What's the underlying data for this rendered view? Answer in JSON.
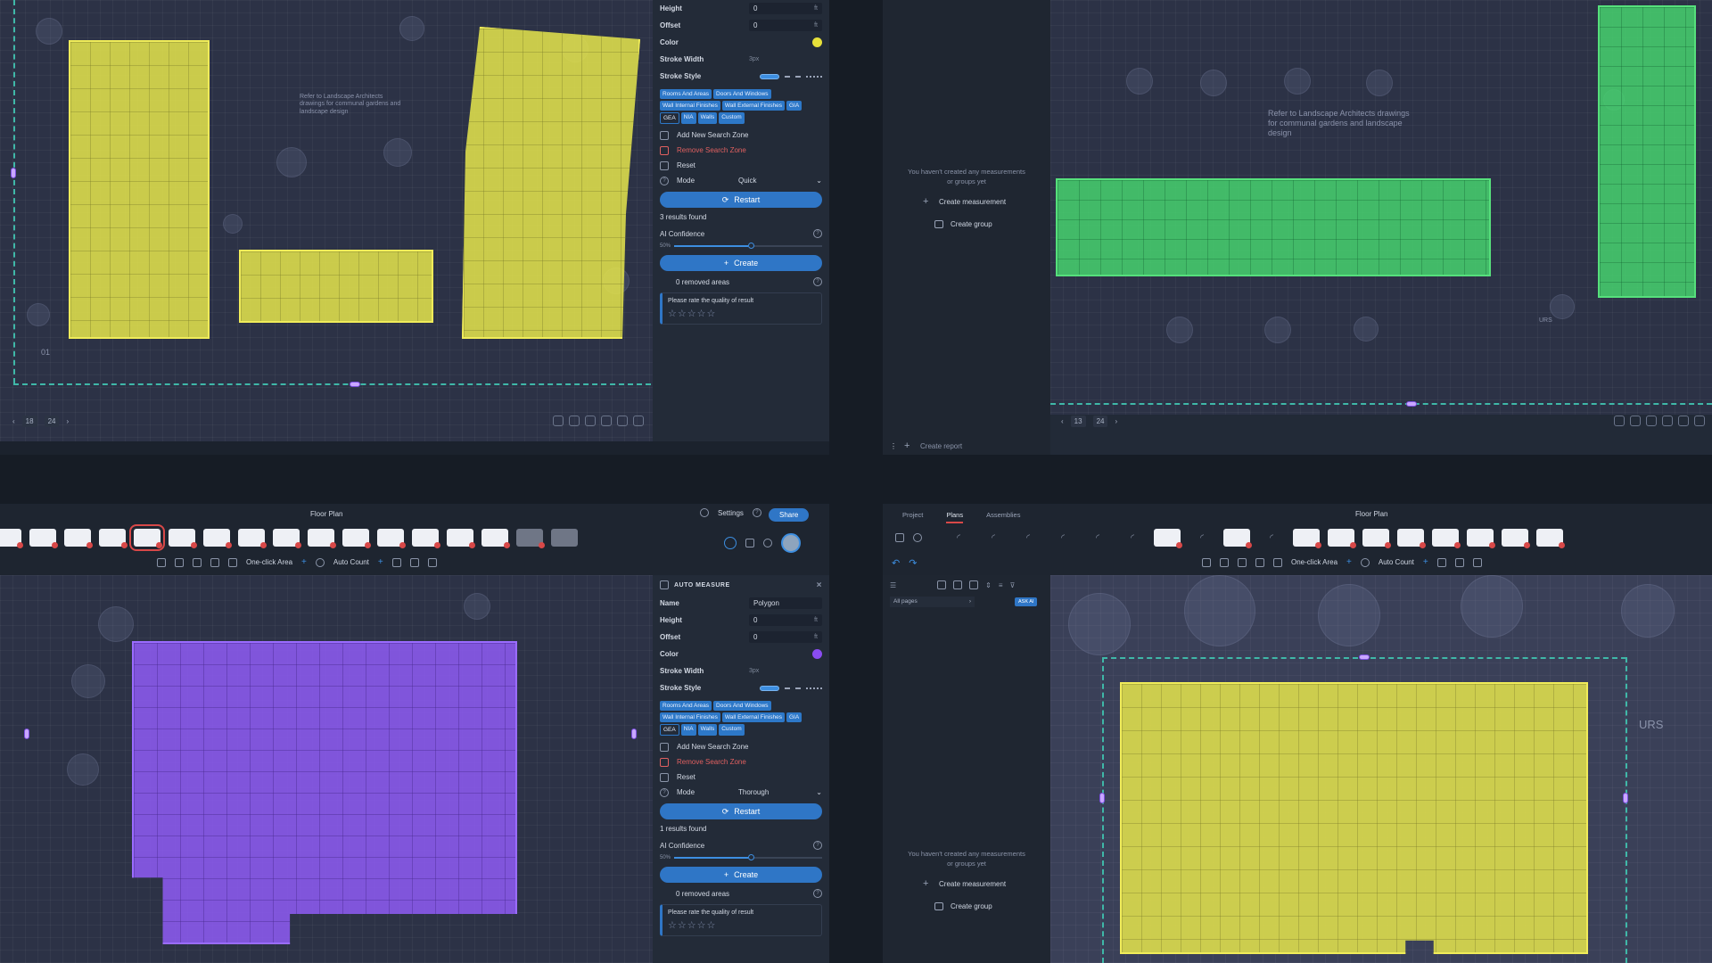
{
  "quad_tl": {
    "note": "Refer to Landscape Architects drawings for communal gardens and landscape design",
    "plan_label": "01",
    "pager": {
      "current": "18",
      "total": "24"
    },
    "panel": {
      "height_label": "Height",
      "height_value": "0",
      "height_unit": "ft",
      "offset_label": "Offset",
      "offset_value": "0",
      "offset_unit": "ft",
      "color_label": "Color",
      "color": "#e6e03a",
      "stroke_width_label": "Stroke Width",
      "stroke_width_value": "3px",
      "stroke_style_label": "Stroke Style",
      "tags": [
        "Rooms And Areas",
        "Doors And Windows",
        "Wall Internal Finishes",
        "Wall External Finishes",
        "GIA",
        "GEA",
        "NIA",
        "Walls",
        "Custom"
      ],
      "add_zone": "Add New Search Zone",
      "remove_zone": "Remove Search Zone",
      "reset": "Reset",
      "mode_label": "Mode",
      "mode_value": "Quick",
      "restart": "Restart",
      "results": "3 results found",
      "confidence_label": "AI Confidence",
      "confidence_value": "50%",
      "create": "Create",
      "removed": "0 removed areas",
      "rate": "Please rate the quality of result",
      "stars": "☆☆☆☆☆"
    }
  },
  "quad_tr": {
    "note": "Refer to Landscape Architects drawings for communal gardens and landscape design",
    "plan_label": "URS",
    "empty_msg": "You haven't created any measurements or groups yet",
    "create_measurement": "Create measurement",
    "create_group": "Create group",
    "create_report": "Create report",
    "pager": {
      "current": "13",
      "total": "24"
    }
  },
  "quad_bl": {
    "title": "Floor Plan",
    "settings": "Settings",
    "share": "Share",
    "tools": {
      "one_click": "One-click Area",
      "auto_count": "Auto Count"
    },
    "panel": {
      "header": "AUTO MEASURE",
      "name_label": "Name",
      "name_value": "Polygon",
      "height_label": "Height",
      "height_value": "0",
      "height_unit": "ft",
      "offset_label": "Offset",
      "offset_value": "0",
      "offset_unit": "ft",
      "color_label": "Color",
      "color": "#8a4cf0",
      "stroke_width_label": "Stroke Width",
      "stroke_width_value": "3px",
      "stroke_style_label": "Stroke Style",
      "tags": [
        "Rooms And Areas",
        "Doors And Windows",
        "Wall Internal Finishes",
        "Wall External Finishes",
        "GIA",
        "GEA",
        "NIA",
        "Walls",
        "Custom"
      ],
      "add_zone": "Add New Search Zone",
      "remove_zone": "Remove Search Zone",
      "reset": "Reset",
      "mode_label": "Mode",
      "mode_value": "Thorough",
      "restart": "Restart",
      "results": "1 results found",
      "confidence_label": "AI Confidence",
      "confidence_value": "50%",
      "create": "Create",
      "removed": "0 removed areas",
      "rate": "Please rate the quality of result",
      "stars": "☆☆☆☆☆"
    }
  },
  "quad_br": {
    "tabs": [
      "Project",
      "Plans",
      "Assemblies"
    ],
    "title": "Floor Plan",
    "tools": {
      "one_click": "One-click Area",
      "auto_count": "Auto Count"
    },
    "pages_label": "All pages",
    "ask_ai": "ASK AI",
    "plan_label": "URS",
    "empty_msg": "You haven't created any measurements or groups yet",
    "create_measurement": "Create measurement",
    "create_group": "Create group"
  }
}
